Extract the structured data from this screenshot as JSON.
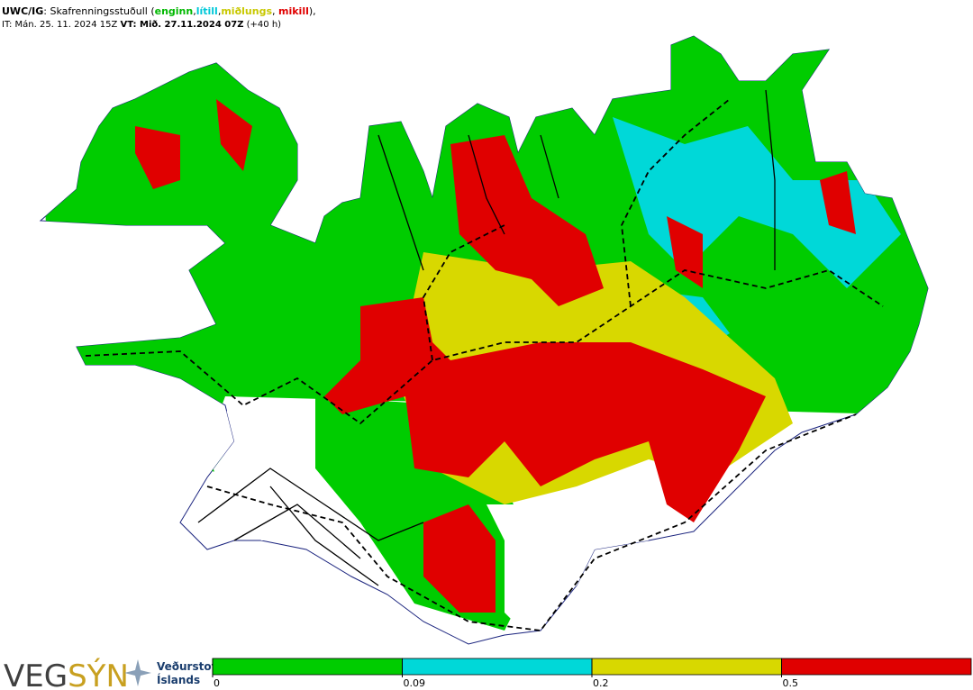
{
  "header": {
    "line1": [
      {
        "text": "UWC/IG",
        "bold": true
      },
      {
        "text": ": Skafrenningsstuðull ("
      },
      {
        "text": "enginn",
        "bold": true,
        "color": "#00b800"
      },
      {
        "text": ","
      },
      {
        "text": "lítill",
        "bold": true,
        "color": "#00c8d8"
      },
      {
        "text": ","
      },
      {
        "text": "miðlungs",
        "bold": true,
        "color": "#c8c800"
      },
      {
        "text": ", "
      },
      {
        "text": "mikill",
        "bold": true,
        "color": "#e00000"
      },
      {
        "text": "),"
      }
    ],
    "line2": [
      {
        "text": "IT: Mán. 25. 11. 2024 15Z "
      },
      {
        "text": "VT: Mið. 27.11.2024 07Z",
        "bold": true
      },
      {
        "text": " (+40 h)"
      }
    ]
  },
  "legend": {
    "ticks": [
      0,
      0.09,
      0.2,
      0.5
    ],
    "colors": [
      "#00cc00",
      "#00d8d8",
      "#d8d800",
      "#e00000"
    ]
  },
  "logos": {
    "vegsyn": [
      {
        "text": "VEG",
        "color": "#404040"
      },
      {
        "text": "SÝN",
        "color": "#c8a020"
      }
    ],
    "vedurstofa": [
      "Veðurstofa",
      "Íslands"
    ]
  }
}
